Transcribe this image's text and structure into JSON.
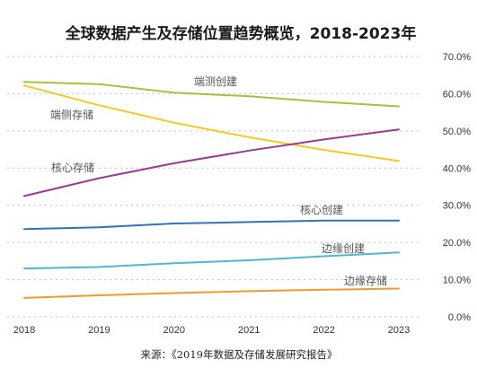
{
  "chart_data": {
    "type": "line",
    "title": "全球数据产生及存储位置趋势概览，2018-2023年",
    "source": "来源：《2019年数据及存储发展研究报告》",
    "x": [
      "2018",
      "2019",
      "2020",
      "2021",
      "2022",
      "2023"
    ],
    "ylim": [
      0,
      70
    ],
    "ytick_labels": [
      "0.0%",
      "10.0%",
      "20.0%",
      "30.0%",
      "40.0%",
      "50.0%",
      "60.0%",
      "70.0%"
    ],
    "grid": true,
    "legend": "none",
    "series": [
      {
        "name": "端测创建",
        "color": "#a4c23c",
        "values": [
          63.2,
          62.6,
          60.3,
          59.3,
          57.8,
          56.6
        ]
      },
      {
        "name": "端侧存储",
        "color": "#f5c822",
        "values": [
          62.2,
          56.9,
          52.2,
          48.3,
          44.9,
          41.9
        ]
      },
      {
        "name": "核心存储",
        "color": "#9b3a96",
        "values": [
          32.5,
          37.3,
          41.3,
          44.7,
          47.7,
          50.4
        ]
      },
      {
        "name": "核心创建",
        "color": "#2f75b5",
        "values": [
          23.6,
          24.1,
          25.1,
          25.5,
          25.9,
          25.9
        ]
      },
      {
        "name": "边缘创建",
        "color": "#4fb6d3",
        "values": [
          13.0,
          13.4,
          14.4,
          15.2,
          16.3,
          17.3
        ]
      },
      {
        "name": "边缘存储",
        "color": "#f39a2e",
        "values": [
          5.1,
          5.8,
          6.4,
          6.9,
          7.3,
          7.6
        ]
      }
    ]
  }
}
